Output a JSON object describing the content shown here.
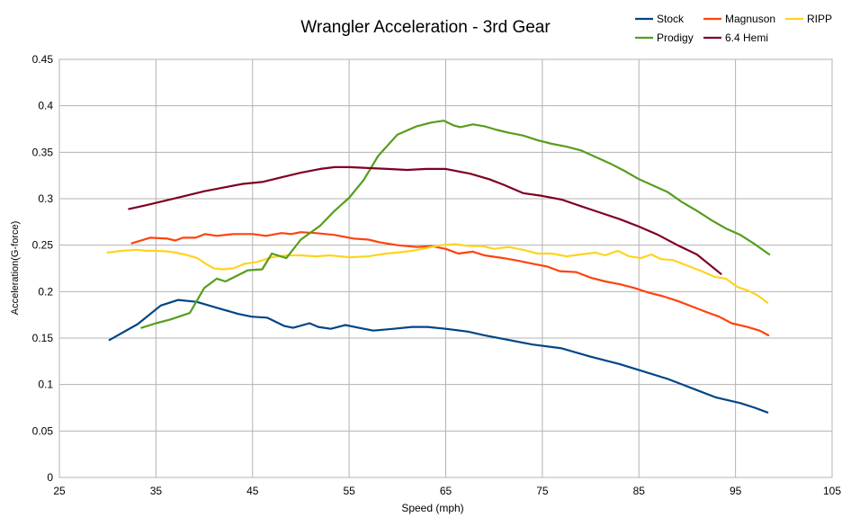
{
  "chart_data": {
    "type": "line",
    "title": "Wrangler Acceleration - 3rd Gear",
    "xlabel": "Speed (mph)",
    "ylabel": "Acceleration(G-force)",
    "xlim": [
      25,
      105
    ],
    "ylim": [
      0,
      0.45
    ],
    "x_ticks": [
      25,
      35,
      45,
      55,
      65,
      75,
      85,
      95,
      105
    ],
    "y_ticks": [
      0,
      0.05,
      0.1,
      0.15,
      0.2,
      0.25,
      0.3,
      0.35,
      0.4,
      0.45
    ],
    "x_tick_labels": [
      "25",
      "35",
      "45",
      "55",
      "65",
      "75",
      "85",
      "95",
      "105"
    ],
    "y_tick_labels": [
      "0",
      "0.05",
      "0.1",
      "0.15",
      "0.2",
      "0.25",
      "0.3",
      "0.35",
      "0.4",
      "0.45"
    ],
    "grid": true,
    "legend_position": "top-right",
    "series": [
      {
        "name": "Stock",
        "color": "#004586",
        "points": [
          [
            30.2,
            0.148
          ],
          [
            33.1,
            0.165
          ],
          [
            35.5,
            0.185
          ],
          [
            37.3,
            0.191
          ],
          [
            39.2,
            0.189
          ],
          [
            41.5,
            0.182
          ],
          [
            43.5,
            0.176
          ],
          [
            44.9,
            0.173
          ],
          [
            46.5,
            0.172
          ],
          [
            48.3,
            0.163
          ],
          [
            49.2,
            0.161
          ],
          [
            50.9,
            0.166
          ],
          [
            51.8,
            0.162
          ],
          [
            53.1,
            0.16
          ],
          [
            54.6,
            0.164
          ],
          [
            56.0,
            0.161
          ],
          [
            57.5,
            0.158
          ],
          [
            59.6,
            0.16
          ],
          [
            61.5,
            0.162
          ],
          [
            63.1,
            0.162
          ],
          [
            65.0,
            0.16
          ],
          [
            67.3,
            0.157
          ],
          [
            69.0,
            0.153
          ],
          [
            71.5,
            0.148
          ],
          [
            74.0,
            0.143
          ],
          [
            77.0,
            0.139
          ],
          [
            80.0,
            0.13
          ],
          [
            83.0,
            0.122
          ],
          [
            85.5,
            0.114
          ],
          [
            88.0,
            0.106
          ],
          [
            90.5,
            0.096
          ],
          [
            93.0,
            0.086
          ],
          [
            95.5,
            0.08
          ],
          [
            97.0,
            0.075
          ],
          [
            98.3,
            0.07
          ]
        ]
      },
      {
        "name": "Magnuson",
        "color": "#ff420e",
        "points": [
          [
            32.5,
            0.252
          ],
          [
            34.4,
            0.258
          ],
          [
            36.2,
            0.257
          ],
          [
            37.0,
            0.255
          ],
          [
            37.8,
            0.258
          ],
          [
            39.1,
            0.258
          ],
          [
            40.1,
            0.262
          ],
          [
            41.3,
            0.26
          ],
          [
            43.0,
            0.262
          ],
          [
            45.0,
            0.262
          ],
          [
            46.4,
            0.26
          ],
          [
            48.0,
            0.263
          ],
          [
            49.0,
            0.262
          ],
          [
            50.0,
            0.264
          ],
          [
            51.5,
            0.263
          ],
          [
            53.5,
            0.261
          ],
          [
            55.5,
            0.257
          ],
          [
            57.0,
            0.256
          ],
          [
            58.2,
            0.253
          ],
          [
            60.0,
            0.25
          ],
          [
            62.0,
            0.248
          ],
          [
            63.5,
            0.249
          ],
          [
            65.0,
            0.246
          ],
          [
            66.3,
            0.241
          ],
          [
            67.8,
            0.243
          ],
          [
            69.0,
            0.239
          ],
          [
            71.0,
            0.236
          ],
          [
            72.6,
            0.233
          ],
          [
            74.0,
            0.23
          ],
          [
            75.5,
            0.227
          ],
          [
            76.8,
            0.222
          ],
          [
            78.5,
            0.221
          ],
          [
            80.0,
            0.215
          ],
          [
            81.5,
            0.211
          ],
          [
            83.0,
            0.208
          ],
          [
            84.5,
            0.204
          ],
          [
            86.0,
            0.199
          ],
          [
            87.5,
            0.195
          ],
          [
            89.0,
            0.19
          ],
          [
            90.5,
            0.184
          ],
          [
            92.0,
            0.178
          ],
          [
            93.3,
            0.173
          ],
          [
            94.6,
            0.166
          ],
          [
            96.2,
            0.162
          ],
          [
            97.5,
            0.158
          ],
          [
            98.4,
            0.153
          ]
        ]
      },
      {
        "name": "RIPP",
        "color": "#ffd320",
        "points": [
          [
            30.0,
            0.242
          ],
          [
            31.5,
            0.244
          ],
          [
            33.0,
            0.245
          ],
          [
            34.0,
            0.244
          ],
          [
            35.0,
            0.244
          ],
          [
            36.5,
            0.243
          ],
          [
            38.0,
            0.24
          ],
          [
            39.3,
            0.236
          ],
          [
            40.3,
            0.229
          ],
          [
            41.0,
            0.225
          ],
          [
            42.0,
            0.224
          ],
          [
            43.0,
            0.225
          ],
          [
            44.2,
            0.23
          ],
          [
            45.5,
            0.232
          ],
          [
            47.0,
            0.237
          ],
          [
            48.5,
            0.239
          ],
          [
            50.0,
            0.239
          ],
          [
            51.5,
            0.238
          ],
          [
            53.0,
            0.239
          ],
          [
            55.0,
            0.237
          ],
          [
            57.0,
            0.238
          ],
          [
            58.8,
            0.241
          ],
          [
            60.0,
            0.242
          ],
          [
            61.5,
            0.244
          ],
          [
            63.0,
            0.247
          ],
          [
            64.5,
            0.25
          ],
          [
            66.0,
            0.251
          ],
          [
            67.5,
            0.249
          ],
          [
            68.8,
            0.249
          ],
          [
            70.0,
            0.246
          ],
          [
            71.5,
            0.248
          ],
          [
            73.0,
            0.245
          ],
          [
            74.5,
            0.241
          ],
          [
            76.0,
            0.241
          ],
          [
            77.5,
            0.238
          ],
          [
            79.0,
            0.24
          ],
          [
            80.5,
            0.242
          ],
          [
            81.5,
            0.239
          ],
          [
            82.8,
            0.244
          ],
          [
            84.0,
            0.238
          ],
          [
            85.2,
            0.236
          ],
          [
            86.3,
            0.24
          ],
          [
            87.3,
            0.235
          ],
          [
            88.5,
            0.234
          ],
          [
            90.0,
            0.228
          ],
          [
            91.5,
            0.222
          ],
          [
            92.8,
            0.216
          ],
          [
            94.0,
            0.214
          ],
          [
            95.2,
            0.205
          ],
          [
            96.3,
            0.201
          ],
          [
            97.3,
            0.196
          ],
          [
            98.3,
            0.188
          ]
        ]
      },
      {
        "name": "Prodigy",
        "color": "#579d1c",
        "points": [
          [
            33.5,
            0.161
          ],
          [
            35.0,
            0.166
          ],
          [
            36.5,
            0.17
          ],
          [
            38.5,
            0.177
          ],
          [
            40.0,
            0.204
          ],
          [
            41.3,
            0.214
          ],
          [
            42.2,
            0.211
          ],
          [
            44.5,
            0.223
          ],
          [
            46.0,
            0.224
          ],
          [
            47.0,
            0.241
          ],
          [
            48.5,
            0.236
          ],
          [
            50.0,
            0.256
          ],
          [
            52.0,
            0.271
          ],
          [
            53.5,
            0.287
          ],
          [
            55.0,
            0.301
          ],
          [
            56.5,
            0.32
          ],
          [
            58.0,
            0.346
          ],
          [
            60.0,
            0.369
          ],
          [
            62.0,
            0.378
          ],
          [
            63.5,
            0.382
          ],
          [
            64.8,
            0.384
          ],
          [
            65.8,
            0.379
          ],
          [
            66.5,
            0.377
          ],
          [
            67.8,
            0.38
          ],
          [
            69.0,
            0.378
          ],
          [
            70.3,
            0.374
          ],
          [
            71.5,
            0.371
          ],
          [
            73.0,
            0.368
          ],
          [
            74.5,
            0.363
          ],
          [
            76.0,
            0.359
          ],
          [
            77.5,
            0.356
          ],
          [
            79.0,
            0.352
          ],
          [
            80.5,
            0.345
          ],
          [
            82.0,
            0.338
          ],
          [
            83.5,
            0.33
          ],
          [
            85.0,
            0.321
          ],
          [
            86.5,
            0.314
          ],
          [
            88.0,
            0.307
          ],
          [
            89.5,
            0.296
          ],
          [
            91.0,
            0.287
          ],
          [
            92.5,
            0.277
          ],
          [
            94.0,
            0.268
          ],
          [
            95.5,
            0.261
          ],
          [
            97.0,
            0.251
          ],
          [
            98.5,
            0.24
          ]
        ]
      },
      {
        "name": "6.4 Hemi",
        "color": "#7e0021",
        "points": [
          [
            32.2,
            0.289
          ],
          [
            34.0,
            0.293
          ],
          [
            36.0,
            0.298
          ],
          [
            38.0,
            0.303
          ],
          [
            40.0,
            0.308
          ],
          [
            42.0,
            0.312
          ],
          [
            44.0,
            0.316
          ],
          [
            46.0,
            0.318
          ],
          [
            48.0,
            0.323
          ],
          [
            50.0,
            0.328
          ],
          [
            52.0,
            0.332
          ],
          [
            53.5,
            0.334
          ],
          [
            55.0,
            0.334
          ],
          [
            57.0,
            0.333
          ],
          [
            59.0,
            0.332
          ],
          [
            61.0,
            0.331
          ],
          [
            63.0,
            0.332
          ],
          [
            65.0,
            0.332
          ],
          [
            67.5,
            0.327
          ],
          [
            69.5,
            0.321
          ],
          [
            71.0,
            0.315
          ],
          [
            73.0,
            0.306
          ],
          [
            75.0,
            0.303
          ],
          [
            77.0,
            0.299
          ],
          [
            79.0,
            0.292
          ],
          [
            81.0,
            0.285
          ],
          [
            83.0,
            0.278
          ],
          [
            85.0,
            0.27
          ],
          [
            87.0,
            0.261
          ],
          [
            89.0,
            0.25
          ],
          [
            91.0,
            0.24
          ],
          [
            93.5,
            0.219
          ]
        ]
      }
    ]
  }
}
